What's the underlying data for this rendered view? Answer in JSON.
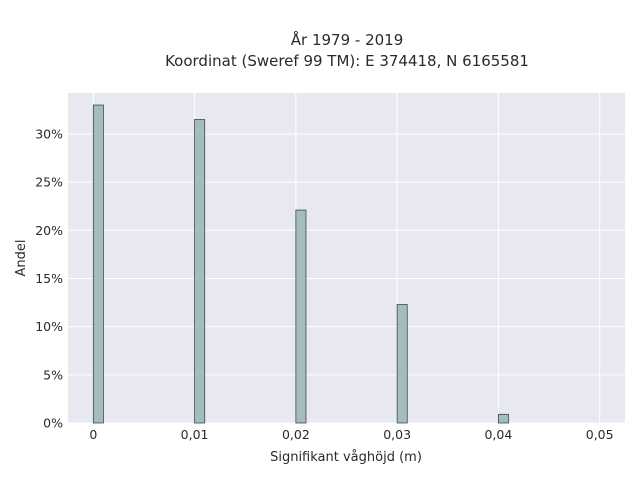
{
  "chart_data": {
    "type": "bar",
    "title": "År 1979 - 2019",
    "subtitle": "Koordinat (Sweref 99 TM): E 374418, N 6165581",
    "xlabel": "Signifikant våghöjd (m)",
    "ylabel": "Andel",
    "x": [
      0,
      0.01,
      0.02,
      0.03,
      0.04
    ],
    "values": [
      0.33,
      0.315,
      0.221,
      0.123,
      0.009
    ],
    "xlim": [
      -0.0025,
      0.0525
    ],
    "ylim": [
      0,
      0.3425
    ],
    "x_ticks": [
      0,
      0.01,
      0.02,
      0.03,
      0.04,
      0.05
    ],
    "x_tick_labels": [
      "0",
      "0,01",
      "0,02",
      "0,03",
      "0,04",
      "0,05"
    ],
    "y_ticks": [
      0,
      0.05,
      0.1,
      0.15,
      0.2,
      0.25,
      0.3
    ],
    "y_tick_labels": [
      "0%",
      "5%",
      "10%",
      "15%",
      "20%",
      "25%",
      "30%"
    ],
    "grid": true,
    "colors": {
      "plot_background": "#e8e8f1",
      "grid": "#ffffff",
      "bar_fill": "#a3bdbf",
      "bar_edge": "#3f4a4a"
    }
  }
}
